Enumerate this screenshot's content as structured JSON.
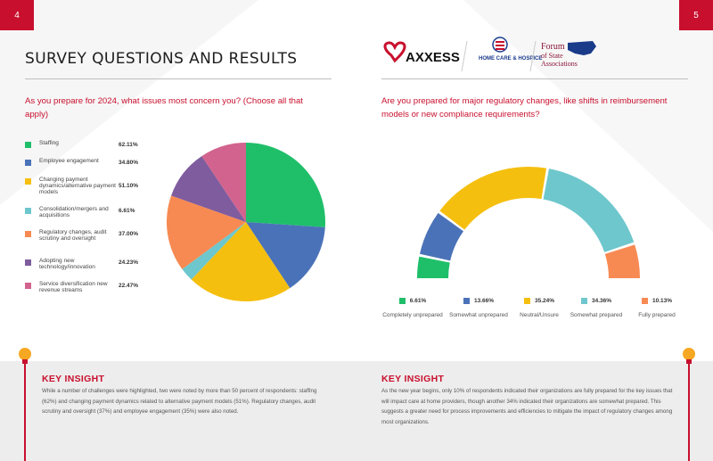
{
  "page_numbers": {
    "left": "4",
    "right": "5"
  },
  "title": "SURVEY QUESTIONS AND RESULTS",
  "logos": {
    "axxess": "AXXESS",
    "home_care": "HOME CARE & HOSPICE",
    "forum_line1": "Forum",
    "forum_line2": "of State",
    "forum_line3": "Associations"
  },
  "left_question": "As you prepare for 2024, what issues most concern you? (Choose all that apply)",
  "right_question": "Are you prepared for major regulatory changes, like shifts in reimbursement models or new compliance requirements?",
  "colors": {
    "accent": "#c8102e",
    "green": "#1fbf6a",
    "blue": "#4a72b8",
    "yellow": "#f5bf0f",
    "teal": "#6ec7cc",
    "orange": "#f78a52",
    "purple": "#7e5c9e",
    "pink": "#d1638e"
  },
  "chart_data": [
    {
      "type": "pie",
      "title": "",
      "categories": [
        "Staffing",
        "Employee engagement",
        "Changing payment dynamics/alternative payment models",
        "Consolidation/mergers and acquisitions",
        "Regulatory changes, audit scrutiny and oversight",
        "Adopting new technology/innovation",
        "Service diversification new revenue streams"
      ],
      "values": [
        62.11,
        34.8,
        51.1,
        6.61,
        37.0,
        24.23,
        22.47
      ],
      "value_labels": [
        "62.11%",
        "34.80%",
        "51.10%",
        "6.61%",
        "37.00%",
        "24.23%",
        "22.47%"
      ],
      "colors": [
        "#1fbf6a",
        "#4a72b8",
        "#f5bf0f",
        "#6ec7cc",
        "#f78a52",
        "#7e5c9e",
        "#d1638e"
      ],
      "legend": "left"
    },
    {
      "type": "pie",
      "title": "",
      "categories": [
        "Completely unprepared",
        "Somewhat unprepared",
        "Neutral/Unsure",
        "Somewhat prepared",
        "Fully prepared"
      ],
      "values": [
        6.61,
        13.66,
        35.24,
        34.36,
        10.13
      ],
      "value_labels": [
        "6.61%",
        "13.66%",
        "35.24%",
        "34.36%",
        "10.13%"
      ],
      "colors": [
        "#1fbf6a",
        "#4a72b8",
        "#f5bf0f",
        "#6ec7cc",
        "#f78a52"
      ],
      "legend": "bottom"
    }
  ],
  "insights": [
    {
      "title": "KEY INSIGHT",
      "text": "While a number of challenges were highlighted, two were noted by more than 50 percent of respondents: staffing (62%) and changing payment dynamics related to alternative payment models (51%). Regulatory changes, audit scrutiny and oversight (37%) and employee engagement (35%) were also noted."
    },
    {
      "title": "KEY INSIGHT",
      "text": "As the new year begins, only 10% of respondents indicated their organizations are fully prepared for the key issues that will impact care at home providers, though another 34% indicated their organizations are somewhat prepared. This suggests a greater need for process improvements and efficiencies to mitigate the impact of regulatory changes among most organizations."
    }
  ]
}
